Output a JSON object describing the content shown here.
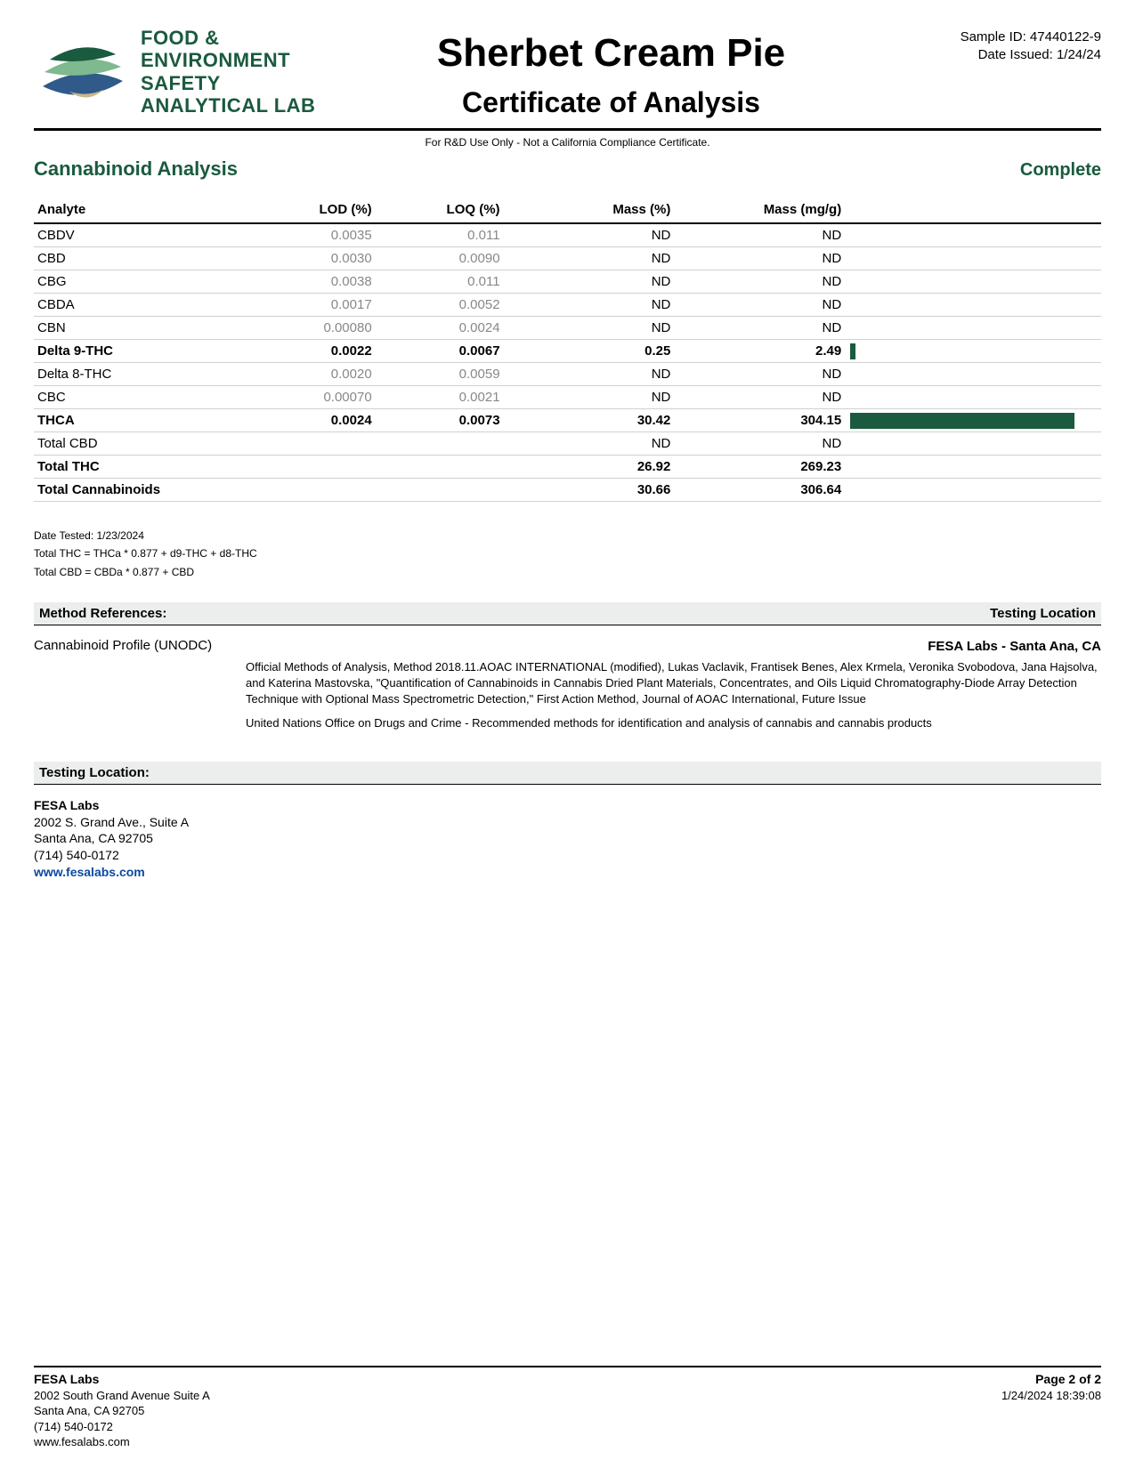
{
  "logo": {
    "line1": "FOOD &",
    "line2": "ENVIRONMENT",
    "line3": "SAFETY",
    "line4": "ANALYTICAL LAB",
    "colors": {
      "dark_green": "#1a5a3e",
      "light_green": "#7fb98f",
      "blue": "#2f5a8a",
      "tan": "#c9b88a"
    }
  },
  "header": {
    "sample_title": "Sherbet Cream Pie",
    "coa_title": "Certificate of Analysis",
    "sample_id_label": "Sample ID: 47440122-9",
    "date_issued_label": "Date Issued: 1/24/24",
    "disclaimer": "For R&D Use Only - Not a California Compliance Certificate."
  },
  "section": {
    "title": "Cannabinoid Analysis",
    "status": "Complete"
  },
  "table": {
    "columns": [
      "Analyte",
      "LOD (%)",
      "LOQ (%)",
      "Mass (%)",
      "Mass (mg/g)"
    ],
    "max_bar_value": 306.64,
    "rows": [
      {
        "analyte": "CBDV",
        "lod": "0.0035",
        "loq": "0.011",
        "mass_pct": "ND",
        "mass_mgg": "ND",
        "bold": false,
        "bar": 0
      },
      {
        "analyte": "CBD",
        "lod": "0.0030",
        "loq": "0.0090",
        "mass_pct": "ND",
        "mass_mgg": "ND",
        "bold": false,
        "bar": 0
      },
      {
        "analyte": "CBG",
        "lod": "0.0038",
        "loq": "0.011",
        "mass_pct": "ND",
        "mass_mgg": "ND",
        "bold": false,
        "bar": 0
      },
      {
        "analyte": "CBDA",
        "lod": "0.0017",
        "loq": "0.0052",
        "mass_pct": "ND",
        "mass_mgg": "ND",
        "bold": false,
        "bar": 0
      },
      {
        "analyte": "CBN",
        "lod": "0.00080",
        "loq": "0.0024",
        "mass_pct": "ND",
        "mass_mgg": "ND",
        "bold": false,
        "bar": 0
      },
      {
        "analyte": "Delta 9-THC",
        "lod": "0.0022",
        "loq": "0.0067",
        "mass_pct": "0.25",
        "mass_mgg": "2.49",
        "bold": true,
        "bar": 2.49
      },
      {
        "analyte": "Delta 8-THC",
        "lod": "0.0020",
        "loq": "0.0059",
        "mass_pct": "ND",
        "mass_mgg": "ND",
        "bold": false,
        "bar": 0
      },
      {
        "analyte": "CBC",
        "lod": "0.00070",
        "loq": "0.0021",
        "mass_pct": "ND",
        "mass_mgg": "ND",
        "bold": false,
        "bar": 0
      },
      {
        "analyte": "THCA",
        "lod": "0.0024",
        "loq": "0.0073",
        "mass_pct": "30.42",
        "mass_mgg": "304.15",
        "bold": true,
        "bar": 304.15
      },
      {
        "analyte": "Total CBD",
        "lod": "",
        "loq": "",
        "mass_pct": "ND",
        "mass_mgg": "ND",
        "bold": false,
        "bar": 0
      },
      {
        "analyte": "Total THC",
        "lod": "",
        "loq": "",
        "mass_pct": "26.92",
        "mass_mgg": "269.23",
        "bold": true,
        "bar": 0
      },
      {
        "analyte": "Total Cannabinoids",
        "lod": "",
        "loq": "",
        "mass_pct": "30.66",
        "mass_mgg": "306.64",
        "bold": true,
        "bar": 0
      }
    ],
    "col_widths_pct": [
      20,
      12,
      12,
      16,
      16,
      24
    ],
    "bar_color": "#1a5a3e"
  },
  "notes": {
    "date_tested": "Date Tested: 1/23/2024",
    "total_thc": "Total THC = THCa * 0.877 + d9-THC + d8-THC",
    "total_cbd": "Total CBD = CBDa * 0.877 + CBD"
  },
  "method": {
    "left_label": "Method References:",
    "right_label": "Testing Location",
    "profile": "Cannabinoid Profile (UNODC)",
    "location": "FESA Labs - Santa Ana, CA",
    "p1": "Official Methods of Analysis, Method 2018.11.AOAC INTERNATIONAL (modified), Lukas Vaclavik, Frantisek Benes, Alex Krmela, Veronika Svobodova, Jana Hajsolva, and Katerina Mastovska, \"Quantification of Cannabinoids in Cannabis Dried Plant Materials, Concentrates, and Oils Liquid Chromatography-Diode Array Detection Technique with Optional Mass Spectrometric Detection,\" First Action Method, Journal of AOAC International, Future Issue",
    "p2": "United Nations Office on Drugs and Crime - Recommended methods for identification and analysis of cannabis and cannabis products"
  },
  "testing_location": {
    "label": "Testing Location:",
    "lab": "FESA Labs",
    "addr1": "2002 S. Grand Ave., Suite A",
    "addr2": "Santa Ana, CA 92705",
    "phone": "(714) 540-0172",
    "url": "www.fesalabs.com"
  },
  "footer": {
    "lab": "FESA Labs",
    "addr1": "2002 South Grand Avenue Suite A",
    "addr2": "Santa Ana, CA 92705",
    "phone": "(714) 540-0172",
    "url": "www.fesalabs.com",
    "page": "Page 2 of 2",
    "timestamp": "1/24/2024 18:39:08"
  }
}
